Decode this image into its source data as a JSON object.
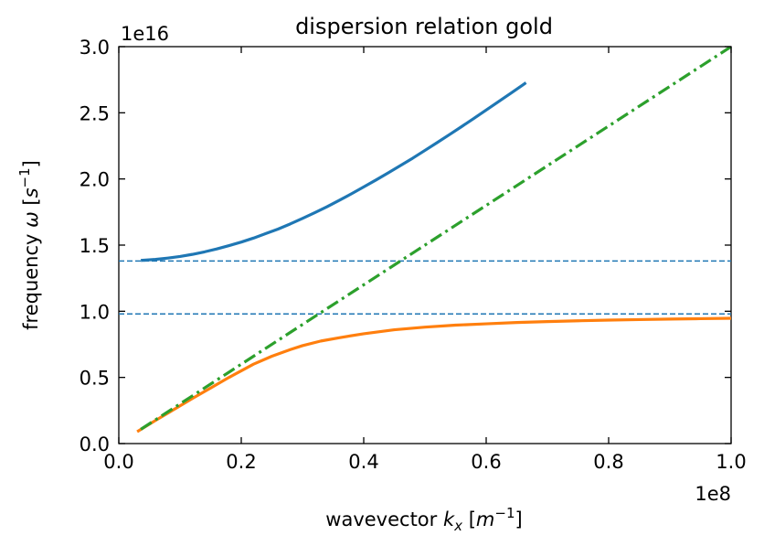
{
  "chart_data": {
    "type": "line",
    "title": "dispersion relation gold",
    "xlabel": {
      "prefix": "wavevector ",
      "var": "k",
      "sub": "x",
      "unit_open": " [",
      "unit_var": "m",
      "unit_sup": "−1",
      "unit_close": "]"
    },
    "ylabel": {
      "prefix": "frequency ",
      "var": "ω",
      "unit_open": " [",
      "unit_var": "s",
      "unit_sup": "−1",
      "unit_close": "]"
    },
    "x_multiplier": "1e8",
    "y_multiplier": "1e16",
    "xlim": [
      0.0,
      1.0
    ],
    "ylim": [
      0.0,
      3.0
    ],
    "x_ticks": [
      "0.0",
      "0.2",
      "0.4",
      "0.6",
      "0.8",
      "1.0"
    ],
    "y_ticks": [
      "0.0",
      "0.5",
      "1.0",
      "1.5",
      "2.0",
      "2.5",
      "3.0"
    ],
    "grid": false,
    "series": [
      {
        "color": "#1f77b4",
        "style": "solid",
        "x": [
          0.036,
          0.06,
          0.08,
          0.1,
          0.12,
          0.14,
          0.16,
          0.18,
          0.2,
          0.22,
          0.24,
          0.26,
          0.28,
          0.3,
          0.32,
          0.34,
          0.36,
          0.38,
          0.4,
          0.42,
          0.44,
          0.46,
          0.48,
          0.5,
          0.52,
          0.54,
          0.56,
          0.58,
          0.6,
          0.62,
          0.64,
          0.66,
          0.665
        ],
        "y": [
          1.384,
          1.392,
          1.402,
          1.414,
          1.43,
          1.449,
          1.471,
          1.496,
          1.523,
          1.553,
          1.587,
          1.621,
          1.66,
          1.702,
          1.745,
          1.79,
          1.838,
          1.888,
          1.94,
          1.992,
          2.046,
          2.101,
          2.157,
          2.216,
          2.275,
          2.335,
          2.396,
          2.458,
          2.521,
          2.584,
          2.647,
          2.711,
          2.727
        ]
      },
      {
        "color": "#ff7f0e",
        "style": "solid",
        "x": [
          0.03,
          0.06,
          0.08,
          0.1,
          0.12,
          0.15,
          0.18,
          0.2,
          0.22,
          0.25,
          0.28,
          0.3,
          0.33,
          0.36,
          0.4,
          0.45,
          0.5,
          0.55,
          0.6,
          0.65,
          0.7,
          0.75,
          0.8,
          0.85,
          0.9,
          0.95,
          1.0
        ],
        "y": [
          0.09,
          0.175,
          0.23,
          0.285,
          0.34,
          0.42,
          0.5,
          0.55,
          0.6,
          0.66,
          0.71,
          0.74,
          0.775,
          0.8,
          0.83,
          0.86,
          0.88,
          0.895,
          0.905,
          0.915,
          0.922,
          0.928,
          0.933,
          0.937,
          0.941,
          0.944,
          0.947
        ]
      },
      {
        "color": "#2ca02c",
        "style": "dashdot",
        "x": [
          0.036,
          1.0
        ],
        "y": [
          0.108,
          3.0
        ]
      }
    ],
    "hlines": [
      {
        "y": 1.38,
        "color": "#1f77b4",
        "style": "dashed"
      },
      {
        "y": 0.98,
        "color": "#1f77b4",
        "style": "dashed"
      }
    ]
  }
}
